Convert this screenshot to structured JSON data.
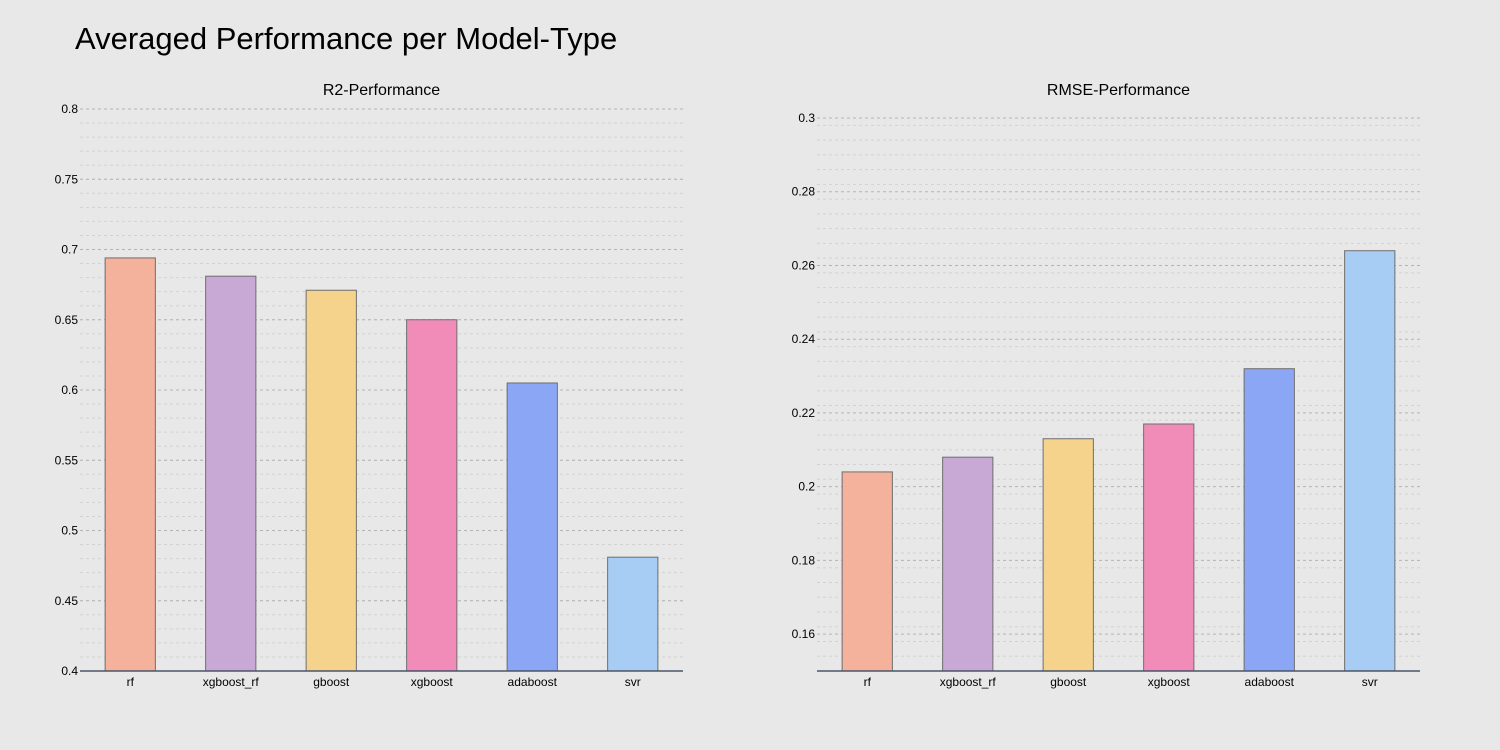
{
  "title": "Averaged Performance per Model-Type",
  "chart_data": [
    {
      "type": "bar",
      "title": "R2-Performance",
      "xlabel": "",
      "ylabel": "",
      "categories": [
        "rf",
        "xgboost_rf",
        "gboost",
        "xgboost",
        "adaboost",
        "svr"
      ],
      "values": [
        0.694,
        0.681,
        0.671,
        0.65,
        0.605,
        0.481
      ],
      "colors": [
        "#f4b19b",
        "#c8a8d4",
        "#f5d38d",
        "#f18cb9",
        "#8ba6f4",
        "#a8cdf4"
      ],
      "ylim": [
        0.4,
        0.8
      ],
      "yticks": [
        0.4,
        0.45,
        0.5,
        0.55,
        0.6,
        0.65,
        0.7,
        0.75,
        0.8
      ],
      "ytick_labels": [
        "0.4",
        "0.45",
        "0.5",
        "0.55",
        "0.6",
        "0.65",
        "0.7",
        "0.75",
        "0.8"
      ],
      "grid": true
    },
    {
      "type": "bar",
      "title": "RMSE-Performance",
      "xlabel": "",
      "ylabel": "",
      "categories": [
        "rf",
        "xgboost_rf",
        "gboost",
        "xgboost",
        "adaboost",
        "svr"
      ],
      "values": [
        0.204,
        0.208,
        0.213,
        0.217,
        0.232,
        0.264
      ],
      "colors": [
        "#f4b19b",
        "#c8a8d4",
        "#f5d38d",
        "#f18cb9",
        "#8ba6f4",
        "#a8cdf4"
      ],
      "ylim": [
        0.15,
        0.3
      ],
      "yticks": [
        0.16,
        0.18,
        0.2,
        0.22,
        0.24,
        0.26,
        0.28,
        0.3
      ],
      "ytick_labels": [
        "0.16",
        "0.18",
        "0.2",
        "0.22",
        "0.24",
        "0.26",
        "0.28",
        "0.3"
      ],
      "grid": true
    }
  ]
}
